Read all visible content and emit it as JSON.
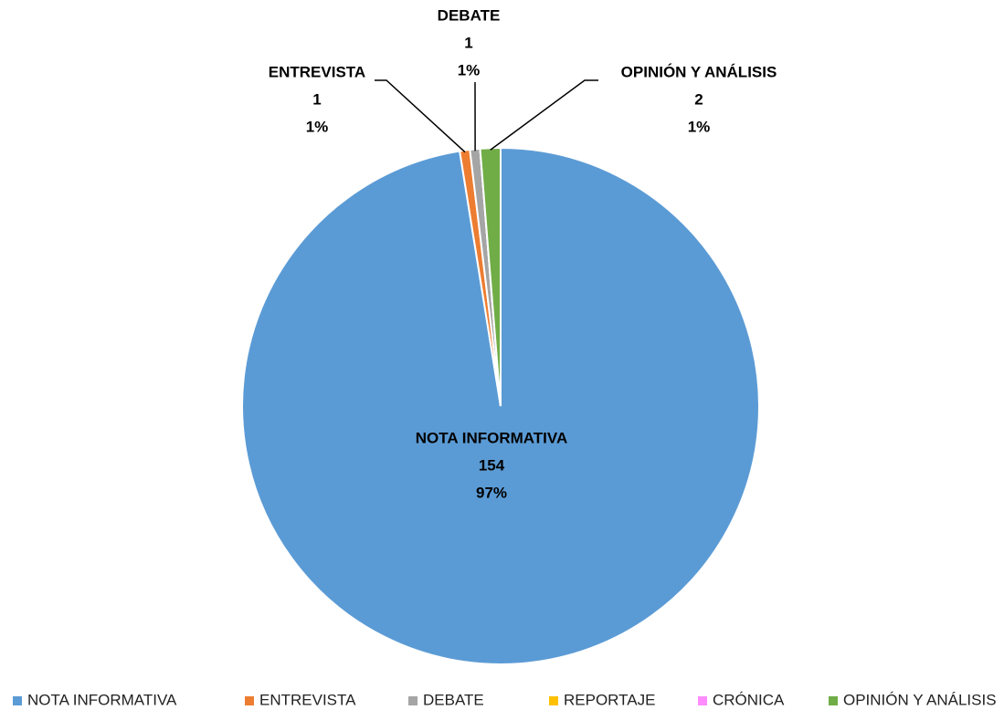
{
  "chart_data": {
    "type": "pie",
    "categories": [
      "NOTA INFORMATIVA",
      "ENTREVISTA",
      "DEBATE",
      "REPORTAJE",
      "CRÓNICA",
      "OPINIÓN Y ANÁLISIS"
    ],
    "values": [
      154,
      1,
      1,
      0,
      0,
      2
    ],
    "percent_labels": [
      "97%",
      "1%",
      "1%",
      null,
      null,
      "1%"
    ],
    "colors": [
      "#5b9bd5",
      "#ed7d31",
      "#a5a5a5",
      "#ffc000",
      "#ff8cff",
      "#70ad47"
    ],
    "legend": "bottom"
  }
}
